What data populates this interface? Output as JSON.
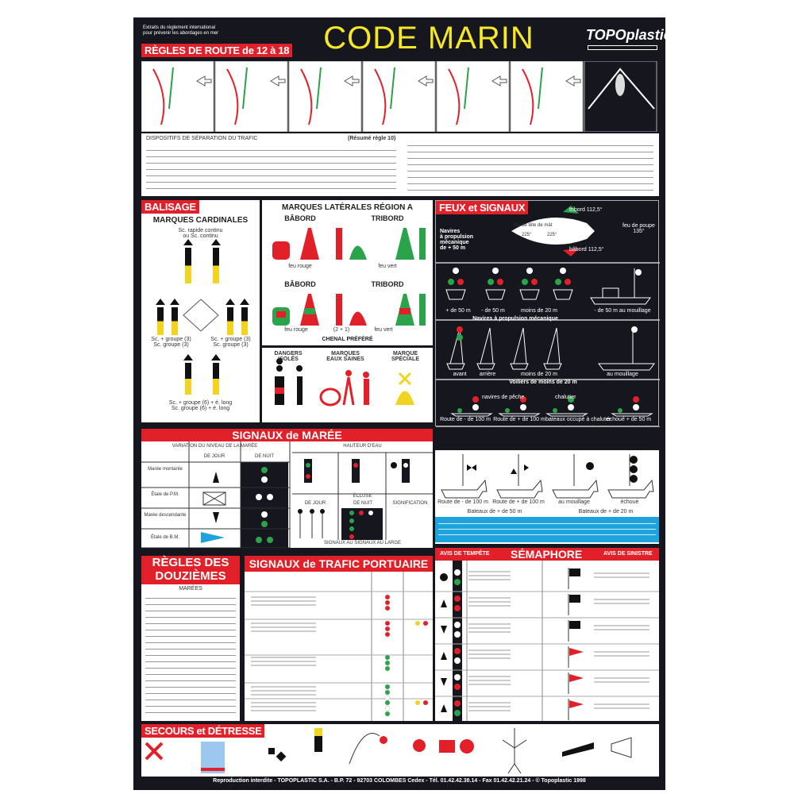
{
  "header": {
    "title": "CODE MARIN",
    "subtitle_lines": [
      "Extraits du règlement international",
      "pour prévenir les abordages en mer"
    ],
    "logo": "TOPOplastic",
    "section": "RÈGLES DE ROUTE de 12 à 18"
  },
  "route": {
    "heading": "DISPOSITIFS DE SÉPARATION DU TRAFIC",
    "note": "(Résumé règle 10)"
  },
  "balisage": {
    "label": "BALISAGE",
    "cardinal_title": "MARQUES CARDINALES",
    "cardinal_top": [
      "Sc. rapide continu",
      "ou Sc. continu"
    ],
    "cardinal_left": [
      "Sc. + groupe (3)",
      "Sc. groupe (3)"
    ],
    "cardinal_right": [
      "Sc. + groupe (3)",
      "Sc. groupe (3)"
    ],
    "cardinal_bottom": [
      "Sc. + groupe (6) + é. long",
      "Sc. groupe (6) + é. long"
    ],
    "lateral_title": "MARQUES LATÉRALES RÉGION A",
    "babord": "BÂBORD",
    "tribord": "TRIBORD",
    "feu_rouge": "feu rouge",
    "feu_vert": "feu vert",
    "rythme": "(2 + 1)",
    "chenal": "CHENAL PRÉFÉRÉ",
    "dangers": [
      "DANGERS",
      "ISOLÉS"
    ],
    "eaux": [
      "MARQUES",
      "EAUX SAINES"
    ],
    "speciale": [
      "MARQUE",
      "SPÉCIALE"
    ]
  },
  "feux": {
    "label": "FEUX et SIGNAUX",
    "tribord": "tribord 112,5°",
    "babord": "bâbord 112,5°",
    "poupe": [
      "feu de poupe",
      "135°"
    ],
    "tete": "feu de tête de mât",
    "angles": [
      "225°",
      "225°"
    ],
    "navire": [
      "Navires",
      "à propulsion",
      "mécanique",
      "de + 50 m"
    ],
    "row1": [
      "+ de 50 m",
      "- de 50 m",
      "moins de 20 m",
      "- de 50 m au mouillage"
    ],
    "row1_caption": "Navires à propulsion mécanique",
    "row2": [
      "avant",
      "arrière",
      "moins de 20 m",
      "au mouillage"
    ],
    "row2_caption": "Voiliers de moins de 20 m",
    "row3_top": [
      "navires de pêche",
      "chalutier"
    ],
    "row3": [
      "Route de - de 100 m",
      "Route de + de 100 m",
      "bateaux occupé à chaluter",
      "échoué + de 50 m"
    ]
  },
  "marine": {
    "row": [
      "Route de - de 100 m",
      "Route de + de 100 m",
      "au mouillage",
      "échoué"
    ],
    "caption": [
      "Bateaux de + de 50 m",
      "Bateaux de + de 20 m"
    ]
  },
  "maree": {
    "label": "SIGNAUX de MARÉE",
    "variation": "VARIATION DU NIVEAU DE LA MARÉE",
    "jour": "DE JOUR",
    "nuit": "DE NUIT",
    "rows": [
      "Marée montante",
      "Étale de P.M.",
      "Marée descendante",
      "Étale de B.M."
    ],
    "hauteur": "HAUTEUR D'EAU",
    "ecluse": "ÉCLUSE",
    "ecl_cols": [
      "DE JOUR",
      "DE NUIT",
      "SIGNIFICATION"
    ],
    "bottom": "SIGNAUX AU SIGNAUX AU LARGE"
  },
  "douziemes": {
    "label": [
      "RÈGLES DES",
      "DOUZIÈMES"
    ],
    "sub": "MARÉES"
  },
  "trafic": {
    "label": "SIGNAUX de TRAFIC PORTUAIRE"
  },
  "semaphore": {
    "label": "SÉMAPHORE",
    "tempete": "AVIS DE TEMPÊTE",
    "sinistre": "AVIS DE SINISTRE"
  },
  "secours": {
    "label": "SECOURS et DÉTRESSE"
  },
  "footer": "Reproduction interdite - TOPOPLASTIC S.A. - B.P. 72 - 92703 COLOMBES Cedex - Tél. 01.42.42.38.14 - Fax 01.42.42.21.24 - © Topoplastic 1998",
  "colors": {
    "red": "#e2202a",
    "green": "#2aa34a",
    "yellow": "#f2d320",
    "background": "#16161e",
    "blue": "#1fa3dc"
  }
}
